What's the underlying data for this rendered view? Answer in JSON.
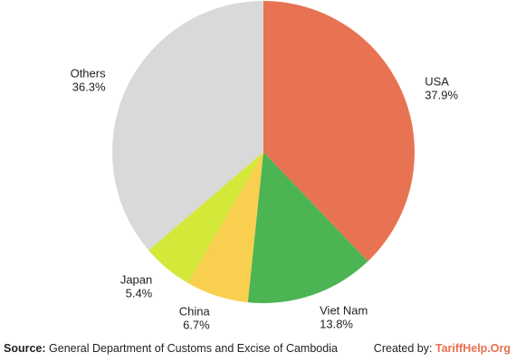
{
  "chart_data": {
    "type": "pie",
    "title": "",
    "start_angle_deg": 0,
    "direction": "clockwise",
    "slices": [
      {
        "label": "USA",
        "value": 37.9,
        "value_label": "37.9%",
        "color": "#e87352"
      },
      {
        "label": "Viet Nam",
        "value": 13.8,
        "value_label": "13.8%",
        "color": "#4cb453"
      },
      {
        "label": "China",
        "value": 6.7,
        "value_label": "6.7%",
        "color": "#f8cf4f"
      },
      {
        "label": "Japan",
        "value": 5.4,
        "value_label": "5.4%",
        "color": "#d4e83a"
      },
      {
        "label": "Others",
        "value": 36.3,
        "value_label": "36.3%",
        "color": "#d9d9d9"
      }
    ]
  },
  "footer": {
    "source_prefix": "Source:",
    "source_text": " General Department of Customs and Excise of Cambodia",
    "credit_prefix": "Created by: ",
    "credit_brand": "TariffHelp.Org"
  }
}
